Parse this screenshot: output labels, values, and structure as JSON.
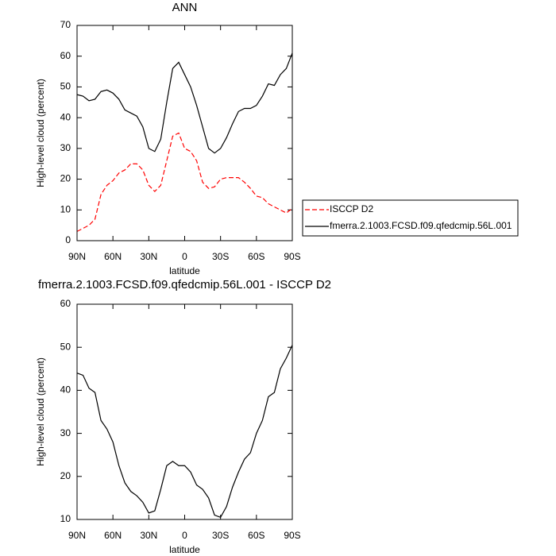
{
  "chart_data": [
    {
      "type": "line",
      "title": "ANN",
      "xlabel": "latitude",
      "ylabel": "High-level cloud (percent)",
      "x": [
        90,
        85,
        80,
        75,
        70,
        65,
        60,
        55,
        50,
        45,
        40,
        35,
        30,
        25,
        20,
        15,
        10,
        5,
        0,
        -5,
        -10,
        -15,
        -20,
        -25,
        -30,
        -35,
        -40,
        -45,
        -50,
        -55,
        -60,
        -65,
        -70,
        -75,
        -80,
        -85,
        -90
      ],
      "xlim": [
        90,
        -90
      ],
      "xticks": [
        {
          "value": 90,
          "label": "90N"
        },
        {
          "value": 60,
          "label": "60N"
        },
        {
          "value": 30,
          "label": "30N"
        },
        0,
        {
          "value": -30,
          "label": "30S"
        },
        {
          "value": -60,
          "label": "60S"
        },
        {
          "value": -90,
          "label": "90S"
        }
      ],
      "ylim": [
        0,
        70
      ],
      "yticks": [
        0,
        10,
        20,
        30,
        40,
        50,
        60,
        70
      ],
      "series": [
        {
          "name": "ISCCP D2",
          "color": "#ff0000",
          "line_style": "dashed",
          "values": [
            3,
            4,
            5,
            7,
            15,
            18,
            19.5,
            22,
            23,
            25,
            25,
            23,
            18,
            16,
            18,
            26,
            34,
            35,
            30,
            29,
            26,
            19,
            17,
            17.5,
            20,
            20.5,
            20.5,
            20.5,
            19,
            17,
            14.5,
            14,
            12,
            11,
            10,
            9,
            10.5
          ]
        },
        {
          "name": "fmerra.2.1003.FCSD.f09.qfedcmip.56L.001",
          "color": "#000000",
          "line_style": "solid",
          "values": [
            47.5,
            47,
            45.5,
            46,
            48.5,
            49,
            48,
            46,
            42.5,
            41.5,
            40.5,
            37,
            30,
            29,
            33,
            45,
            56,
            58,
            54,
            50,
            44,
            37,
            30,
            28.5,
            30,
            33.5,
            38,
            42,
            43,
            43,
            44,
            47,
            51,
            50.5,
            54,
            56,
            61
          ]
        }
      ]
    },
    {
      "type": "line",
      "title": "fmerra.2.1003.FCSD.f09.qfedcmip.56L.001 - ISCCP D2",
      "xlabel": "latitude",
      "ylabel": "High-level cloud (percent)",
      "x": [
        90,
        85,
        80,
        75,
        70,
        65,
        60,
        55,
        50,
        45,
        40,
        35,
        30,
        25,
        20,
        15,
        10,
        5,
        0,
        -5,
        -10,
        -15,
        -20,
        -25,
        -30,
        -35,
        -40,
        -45,
        -50,
        -55,
        -60,
        -65,
        -70,
        -75,
        -80,
        -85,
        -90
      ],
      "xlim": [
        90,
        -90
      ],
      "xticks": [
        {
          "value": 90,
          "label": "90N"
        },
        {
          "value": 60,
          "label": "60N"
        },
        {
          "value": 30,
          "label": "30N"
        },
        0,
        {
          "value": -30,
          "label": "30S"
        },
        {
          "value": -60,
          "label": "60S"
        },
        {
          "value": -90,
          "label": "90S"
        }
      ],
      "ylim": [
        10,
        60
      ],
      "yticks": [
        10,
        20,
        30,
        40,
        50,
        60
      ],
      "color": "#000000",
      "values": [
        44,
        43.5,
        40.5,
        39.5,
        33,
        31,
        28,
        22.5,
        18.5,
        16.5,
        15.5,
        14,
        11.5,
        12,
        17,
        22.5,
        23.5,
        22.5,
        22.5,
        21,
        18,
        17,
        15,
        11,
        10.5,
        13,
        17.5,
        21,
        24,
        25.5,
        30,
        33,
        38.5,
        39.5,
        45,
        47.5,
        50.5
      ]
    }
  ]
}
